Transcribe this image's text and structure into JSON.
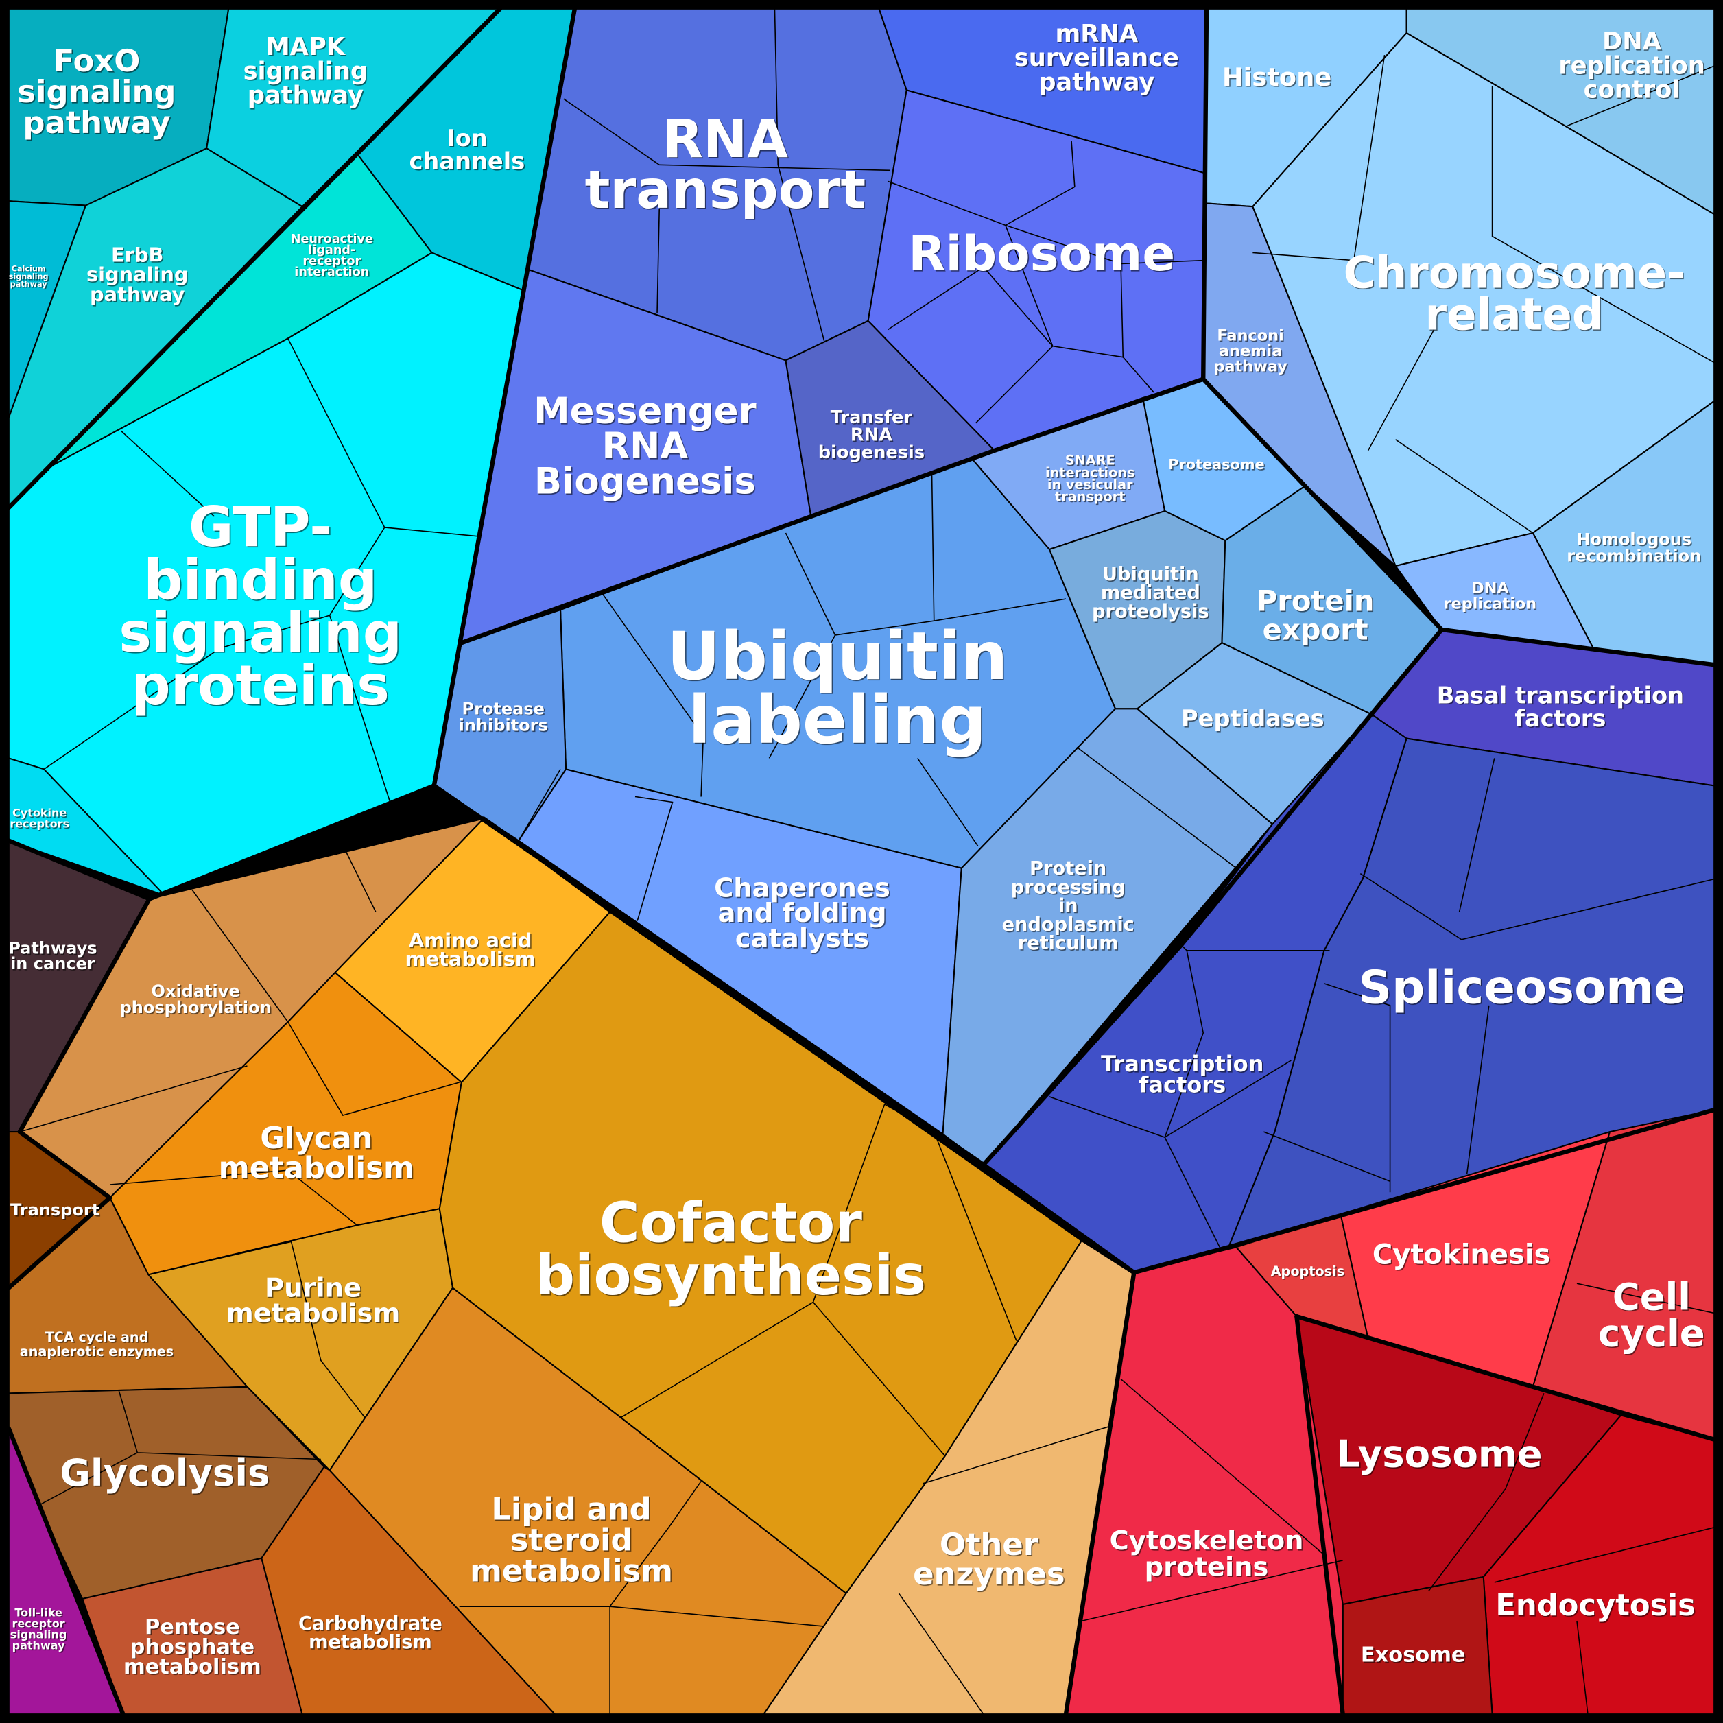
{
  "cells": [
    {
      "id": "foxo",
      "lines": [
        "FoxO",
        "signaling",
        "pathway"
      ],
      "color": "#06aebf"
    },
    {
      "id": "mapk",
      "lines": [
        "MAPK",
        "signaling",
        "pathway"
      ],
      "color": "#0bd0e0"
    },
    {
      "id": "calcium",
      "lines": [
        "Calcium",
        "signaling",
        "pathway"
      ],
      "color": "#00bcd6"
    },
    {
      "id": "erbb",
      "lines": [
        "ErbB",
        "signaling",
        "pathway"
      ],
      "color": "#10d2d8"
    },
    {
      "id": "ion",
      "lines": [
        "Ion",
        "channels"
      ],
      "color": "#00c6dc"
    },
    {
      "id": "neuro",
      "lines": [
        "Neuroactive",
        "ligand-",
        "receptor",
        "interaction"
      ],
      "color": "#00e4d8"
    },
    {
      "id": "gtp",
      "lines": [
        "GTP-",
        "binding",
        "signaling",
        "proteins"
      ],
      "color": "#00f2ff"
    },
    {
      "id": "cytokine",
      "lines": [
        "Cytokine",
        "receptors"
      ],
      "color": "#00dcf2"
    },
    {
      "id": "cancer",
      "lines": [
        "Pathways",
        "in cancer"
      ],
      "color": "#452d35"
    },
    {
      "id": "oxphos",
      "lines": [
        "Oxidative",
        "phosphorylation"
      ],
      "color": "#d8924a"
    },
    {
      "id": "amino",
      "lines": [
        "Amino acid",
        "metabolism"
      ],
      "color": "#ffb424"
    },
    {
      "id": "glycan",
      "lines": [
        "Glycan",
        "metabolism"
      ],
      "color": "#f0900e"
    },
    {
      "id": "transport",
      "lines": [
        "Transport"
      ],
      "color": "#8b3f00"
    },
    {
      "id": "purine",
      "lines": [
        "Purine",
        "metabolism"
      ],
      "color": "#e0a020"
    },
    {
      "id": "tca",
      "lines": [
        "TCA cycle and",
        "anaplerotic enzymes"
      ],
      "color": "#c07020"
    },
    {
      "id": "glycolysis",
      "lines": [
        "Glycolysis"
      ],
      "color": "#a0602a"
    },
    {
      "id": "toll",
      "lines": [
        "Toll-like",
        "receptor",
        "signaling",
        "pathway"
      ],
      "color": "#a3169a"
    },
    {
      "id": "pentose",
      "lines": [
        "Pentose",
        "phosphate",
        "metabolism"
      ],
      "color": "#c25530"
    },
    {
      "id": "carb",
      "lines": [
        "Carbohydrate",
        "metabolism"
      ],
      "color": "#cc6518"
    },
    {
      "id": "lipid",
      "lines": [
        "Lipid and",
        "steroid",
        "metabolism"
      ],
      "color": "#e08a22"
    },
    {
      "id": "cofactor",
      "lines": [
        "Cofactor",
        "biosynthesis"
      ],
      "color": "#e09a12"
    },
    {
      "id": "other",
      "lines": [
        "Other",
        "enzymes"
      ],
      "color": "#f0b870"
    },
    {
      "id": "rnatransport",
      "lines": [
        "RNA",
        "transport"
      ],
      "color": "#5570e0"
    },
    {
      "id": "mrnasurv",
      "lines": [
        "mRNA",
        "surveillance",
        "pathway"
      ],
      "color": "#4a6af0"
    },
    {
      "id": "ribosome",
      "lines": [
        "Ribosome"
      ],
      "color": "#5e70f5"
    },
    {
      "id": "mrnabio",
      "lines": [
        "Messenger",
        "RNA",
        "Biogenesis"
      ],
      "color": "#6078f0"
    },
    {
      "id": "trna",
      "lines": [
        "Transfer",
        "RNA",
        "biogenesis"
      ],
      "color": "#5565c8"
    },
    {
      "id": "snare",
      "lines": [
        "SNARE",
        "interactions",
        "in vesicular",
        "transport"
      ],
      "color": "#80aaf5"
    },
    {
      "id": "proteasome",
      "lines": [
        "Proteasome"
      ],
      "color": "#78bcff"
    },
    {
      "id": "ubiq",
      "lines": [
        "Ubiquitin",
        "labeling"
      ],
      "color": "#60a0f0"
    },
    {
      "id": "protease",
      "lines": [
        "Protease",
        "inhibitors"
      ],
      "color": "#6098ea"
    },
    {
      "id": "ubiqmed",
      "lines": [
        "Ubiquitin",
        "mediated",
        "proteolysis"
      ],
      "color": "#78acdd"
    },
    {
      "id": "export",
      "lines": [
        "Protein",
        "export"
      ],
      "color": "#6aaee8"
    },
    {
      "id": "peptidases",
      "lines": [
        "Peptidases"
      ],
      "color": "#80b8f0"
    },
    {
      "id": "chaperones",
      "lines": [
        "Chaperones",
        "and folding",
        "catalysts"
      ],
      "color": "#70a0ff"
    },
    {
      "id": "er",
      "lines": [
        "Protein",
        "processing",
        "in",
        "endoplasmic",
        "reticulum"
      ],
      "color": "#78aae8"
    },
    {
      "id": "histone",
      "lines": [
        "Histone"
      ],
      "color": "#90d0ff"
    },
    {
      "id": "dnarepctl",
      "lines": [
        "DNA",
        "replication",
        "control"
      ],
      "color": "#88c8f0"
    },
    {
      "id": "fanconi",
      "lines": [
        "Fanconi",
        "anemia",
        "pathway"
      ],
      "color": "#80a8f0"
    },
    {
      "id": "chromo",
      "lines": [
        "Chromosome-",
        "related"
      ],
      "color": "#98d4ff"
    },
    {
      "id": "homrec",
      "lines": [
        "Homologous",
        "recombination"
      ],
      "color": "#88c8f8"
    },
    {
      "id": "dnarep",
      "lines": [
        "DNA",
        "replication"
      ],
      "color": "#88b8ff"
    },
    {
      "id": "basal",
      "lines": [
        "Basal transcription",
        "factors"
      ],
      "color": "#5048c8"
    },
    {
      "id": "splice",
      "lines": [
        "Spliceosome"
      ],
      "color": "#3e52c0"
    },
    {
      "id": "tf",
      "lines": [
        "Transcription",
        "factors"
      ],
      "color": "#4050c8"
    },
    {
      "id": "apoptosis",
      "lines": [
        "Apoptosis"
      ],
      "color": "#e84040"
    },
    {
      "id": "cytokinesis",
      "lines": [
        "Cytokinesis"
      ],
      "color": "#ff3c4a"
    },
    {
      "id": "cellcycle",
      "lines": [
        "Cell",
        "cycle"
      ],
      "color": "#e63540"
    },
    {
      "id": "lysosome",
      "lines": [
        "Lysosome"
      ],
      "color": "#b80818"
    },
    {
      "id": "endocytosis",
      "lines": [
        "Endocytosis"
      ],
      "color": "#d00a18"
    },
    {
      "id": "exosome",
      "lines": [
        "Exosome"
      ],
      "color": "#b01515"
    },
    {
      "id": "cytoskeleton",
      "lines": [
        "Cytoskeleton",
        "proteins"
      ],
      "color": "#f02a48"
    }
  ]
}
